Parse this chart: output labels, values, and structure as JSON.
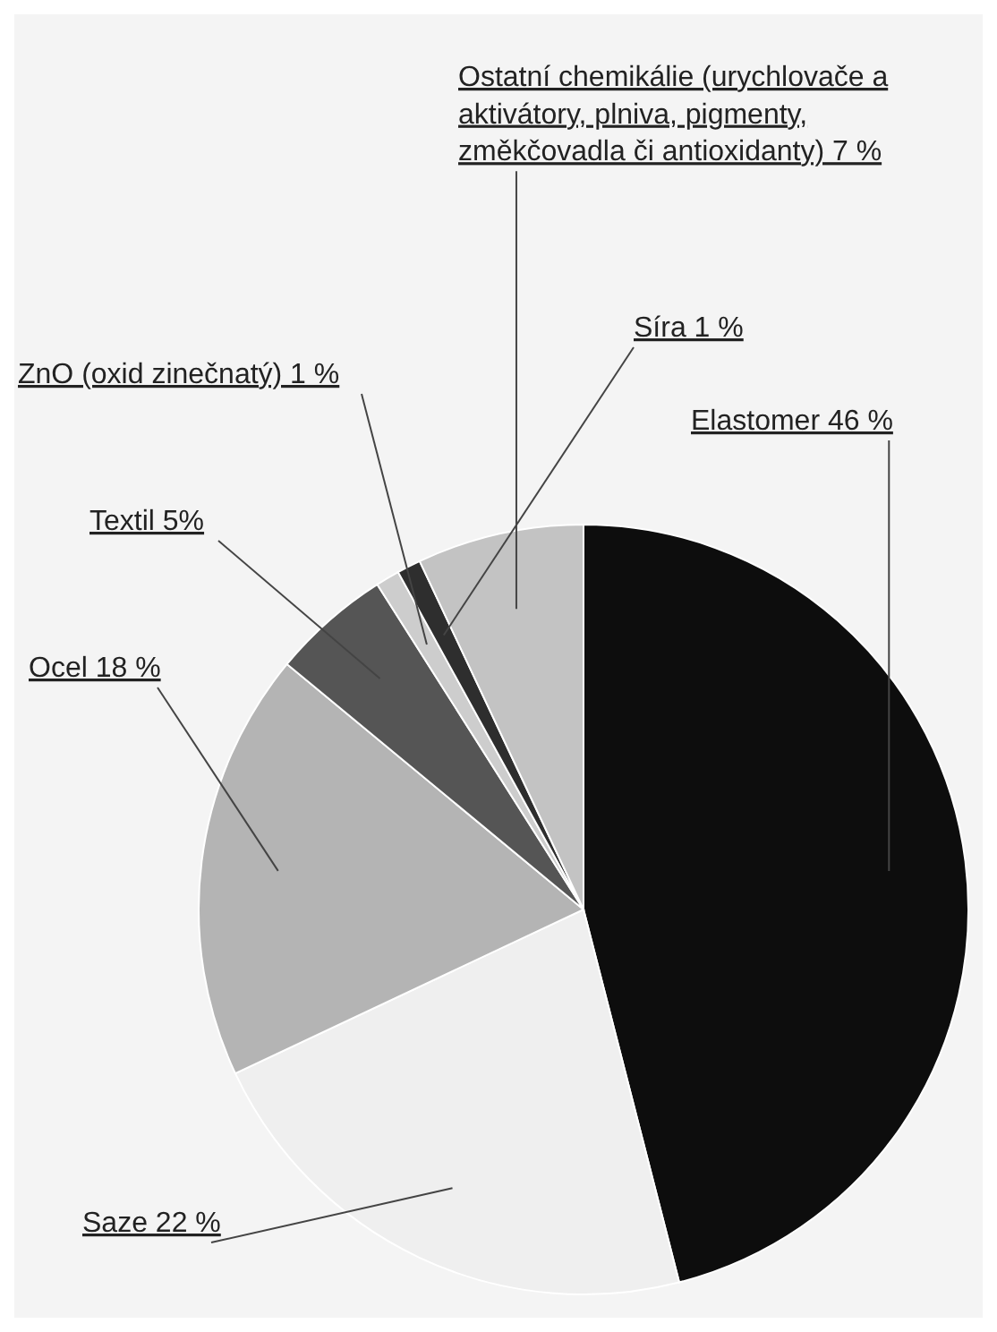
{
  "chart_data": {
    "type": "pie",
    "categories": [
      "Elastomer",
      "Saze",
      "Ocel",
      "Textil",
      "ZnO (oxid zinečnatý)",
      "Síra",
      "Ostatní chemikálie (urychlovače a aktivátory, plniva, pigmenty, změkčovadla či antioxidanty)"
    ],
    "values": [
      46,
      22,
      18,
      5,
      1,
      1,
      7
    ],
    "value_labels": [
      "46 %",
      "22 %",
      "18 %",
      "5%",
      "1 %",
      "1 %",
      "7 %"
    ],
    "colors": [
      "#0d0d0d",
      "#efefef",
      "#b4b4b4",
      "#555555",
      "#cdcdcd",
      "#2e2e2e",
      "#c3c3c3"
    ]
  }
}
